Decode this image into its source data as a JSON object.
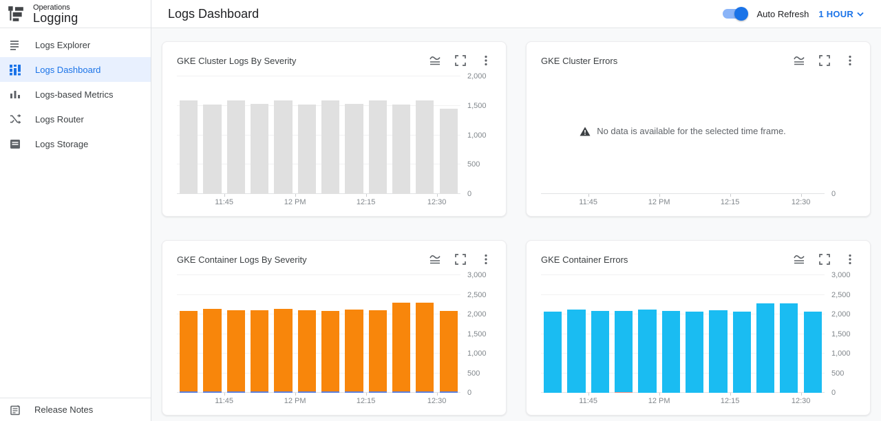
{
  "sidebar": {
    "product": {
      "eyebrow": "Operations",
      "title": "Logging"
    },
    "items": [
      {
        "label": "Logs Explorer",
        "selected": false
      },
      {
        "label": "Logs Dashboard",
        "selected": true
      },
      {
        "label": "Logs-based Metrics",
        "selected": false
      },
      {
        "label": "Logs Router",
        "selected": false
      },
      {
        "label": "Logs Storage",
        "selected": false
      }
    ],
    "footer_item": {
      "label": "Release Notes"
    }
  },
  "header": {
    "title": "Logs Dashboard",
    "auto_refresh_label": "Auto Refresh",
    "auto_refresh_on": true,
    "time_range": "1 HOUR"
  },
  "colors": {
    "accent_blue": "#1a73e8",
    "selected_item_bg": "#e8f0fe",
    "bar_gray": "#e0e0e0",
    "bar_orange": "#f8860b",
    "bar_blue_base": "#5c7fdc",
    "bar_cyan": "#1abcf2",
    "bar_red_base": "#ef8a80"
  },
  "chart_data": [
    {
      "type": "bar",
      "title": "GKE Cluster Logs By Severity",
      "bar_count": 12,
      "ylim": [
        0,
        2000
      ],
      "y_ticks": [
        0,
        500,
        1000,
        1500,
        2000
      ],
      "y_tick_labels": [
        "0",
        "500",
        "1,000",
        "1,500",
        "2,000"
      ],
      "x_tick_labels": [
        "11:45",
        "12 PM",
        "12:15",
        "12:30"
      ],
      "x_tick_positions": [
        2,
        5,
        8,
        11
      ],
      "series": [
        {
          "color": "#e0e0e0",
          "values": [
            1700,
            1625,
            1695,
            1640,
            1695,
            1620,
            1695,
            1640,
            1695,
            1630,
            1695,
            1550
          ]
        }
      ],
      "legend": "none",
      "grid": "on"
    },
    {
      "type": "bar",
      "title": "GKE Cluster Errors",
      "empty": true,
      "message": "No data is available for the selected time frame.",
      "bar_count": 12,
      "ylim": [
        0,
        0
      ],
      "y_ticks": [
        0
      ],
      "y_tick_labels": [
        "0"
      ],
      "x_tick_labels": [
        "11:45",
        "12 PM",
        "12:15",
        "12:30"
      ],
      "x_tick_positions": [
        2,
        5,
        8,
        11
      ],
      "series": [],
      "legend": "none",
      "grid": "off"
    },
    {
      "type": "bar",
      "title": "GKE Container Logs By Severity",
      "bar_count": 12,
      "ylim": [
        0,
        3000
      ],
      "y_ticks": [
        0,
        500,
        1000,
        1500,
        2000,
        2500,
        3000
      ],
      "y_tick_labels": [
        "0",
        "500",
        "1,000",
        "1,500",
        "2,000",
        "2,500",
        "3,000"
      ],
      "x_tick_labels": [
        "11:45",
        "12 PM",
        "12:15",
        "12:30"
      ],
      "x_tick_positions": [
        2,
        5,
        8,
        11
      ],
      "series": [
        {
          "color": "#5c7fdc",
          "values": [
            30,
            30,
            30,
            30,
            30,
            30,
            30,
            30,
            30,
            30,
            30,
            30
          ]
        },
        {
          "color": "#f8860b",
          "values": [
            2210,
            2260,
            2225,
            2225,
            2255,
            2225,
            2205,
            2245,
            2220,
            2425,
            2425,
            2205
          ]
        }
      ],
      "legend": "none",
      "grid": "on"
    },
    {
      "type": "bar",
      "title": "GKE Container Errors",
      "bar_count": 12,
      "ylim": [
        0,
        3000
      ],
      "y_ticks": [
        0,
        500,
        1000,
        1500,
        2000,
        2500,
        3000
      ],
      "y_tick_labels": [
        "0",
        "500",
        "1,000",
        "1,500",
        "2,000",
        "2,500",
        "3,000"
      ],
      "x_tick_labels": [
        "11:45",
        "12 PM",
        "12:15",
        "12:30"
      ],
      "x_tick_positions": [
        2,
        5,
        8,
        11
      ],
      "series": [
        {
          "color": "#ef8a80",
          "values": [
            0,
            0,
            0,
            14,
            0,
            0,
            0,
            0,
            0,
            0,
            0,
            0
          ]
        },
        {
          "color": "#1abcf2",
          "values": [
            2215,
            2265,
            2235,
            2225,
            2265,
            2235,
            2215,
            2255,
            2205,
            2435,
            2435,
            2215
          ]
        }
      ],
      "legend": "none",
      "grid": "on"
    }
  ]
}
